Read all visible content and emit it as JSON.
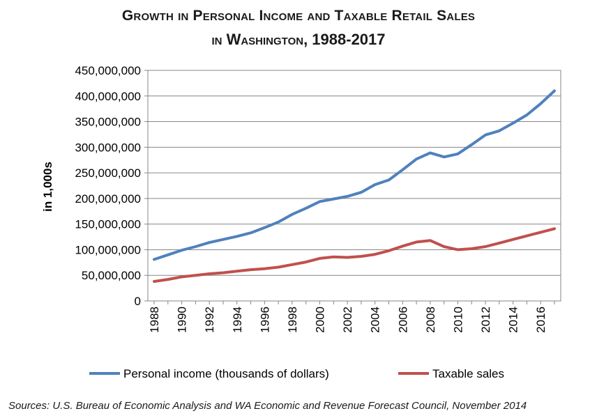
{
  "title": {
    "line1": "Growth in Personal Income and Taxable Retail Sales",
    "line2": "in Washington, 1988-2017"
  },
  "source": "Sources: U.S. Bureau of Economic Analysis and WA Economic and Revenue Forecast Council, November 2014",
  "chart_data": {
    "type": "line",
    "ylabel": "in 1,000s",
    "xlabel": "",
    "xlim": [
      1988,
      2017
    ],
    "ylim": [
      0,
      450000000
    ],
    "grid": true,
    "legend_position": "bottom",
    "x_tick_labels": [
      "1988",
      "1990",
      "1992",
      "1994",
      "1996",
      "1998",
      "2000",
      "2002",
      "2004",
      "2006",
      "2008",
      "2010",
      "2012",
      "2014",
      "2016"
    ],
    "y_tick_labels": [
      "0",
      "50,000,000",
      "100,000,000",
      "150,000,000",
      "200,000,000",
      "250,000,000",
      "300,000,000",
      "350,000,000",
      "400,000,000",
      "450,000,000"
    ],
    "x": [
      1988,
      1989,
      1990,
      1991,
      1992,
      1993,
      1994,
      1995,
      1996,
      1997,
      1998,
      1999,
      2000,
      2001,
      2002,
      2003,
      2004,
      2005,
      2006,
      2007,
      2008,
      2009,
      2010,
      2011,
      2012,
      2013,
      2014,
      2015,
      2016,
      2017
    ],
    "series": [
      {
        "name": "Personal income (thousands of dollars)",
        "color": "#4f81bd",
        "values": [
          81000000,
          90000000,
          99000000,
          106000000,
          114000000,
          120000000,
          126000000,
          133000000,
          143000000,
          154000000,
          169000000,
          181000000,
          194000000,
          199000000,
          204000000,
          212000000,
          227000000,
          236000000,
          256000000,
          277000000,
          289000000,
          281000000,
          287000000,
          305000000,
          324000000,
          332000000,
          347000000,
          363000000,
          385000000,
          410000000
        ]
      },
      {
        "name": "Taxable sales",
        "color": "#c0504d",
        "values": [
          38000000,
          42000000,
          47000000,
          50000000,
          53000000,
          55000000,
          58000000,
          61000000,
          63000000,
          66000000,
          71000000,
          76000000,
          83000000,
          86000000,
          85000000,
          87000000,
          91000000,
          98000000,
          107000000,
          115000000,
          118000000,
          106000000,
          100000000,
          102000000,
          106000000,
          113000000,
          120000000,
          127000000,
          134000000,
          141000000
        ]
      }
    ]
  }
}
